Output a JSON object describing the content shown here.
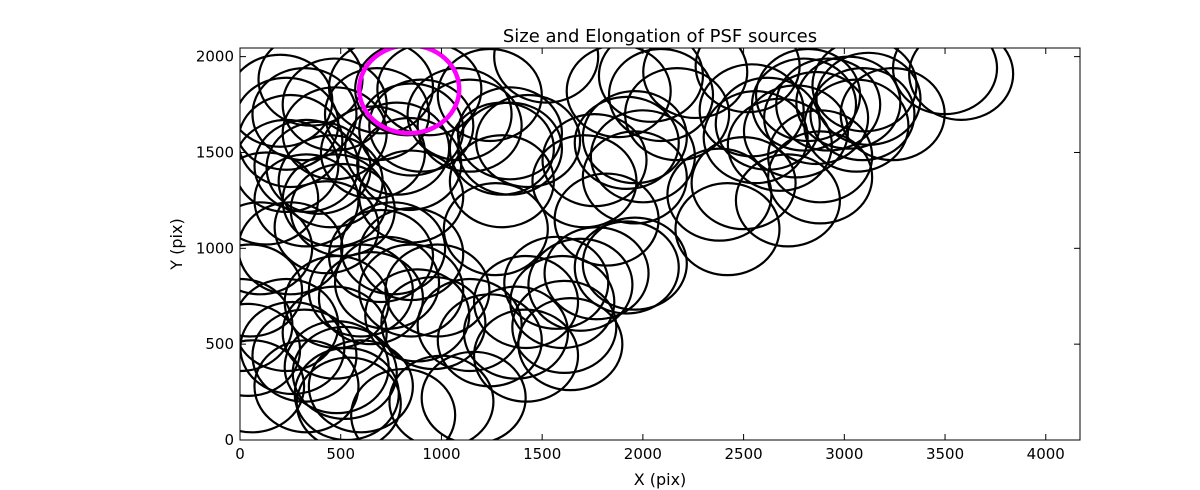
{
  "chart_data": {
    "type": "scatter",
    "title": "Size and Elongation of PSF sources",
    "xlabel": "X (pix)",
    "ylabel": "Y (pix)",
    "xlim": [
      0,
      4170
    ],
    "ylim": [
      0,
      2045
    ],
    "xticks": [
      0,
      500,
      1000,
      1500,
      2000,
      2500,
      3000,
      3500,
      4000
    ],
    "yticks": [
      0,
      500,
      1000,
      1500,
      2000
    ],
    "xtick_labels": [
      "0",
      "500",
      "1000",
      "1500",
      "2000",
      "2500",
      "3000",
      "3500",
      "4000"
    ],
    "ytick_labels": [
      "0",
      "500",
      "1000",
      "1500",
      "2000"
    ],
    "grid": false,
    "marker": "ellipse",
    "sources": [
      [
        2,
        600
      ],
      [
        40,
        470
      ],
      [
        60,
        280
      ],
      [
        50,
        780
      ],
      [
        100,
        1000
      ],
      [
        130,
        1260
      ],
      [
        200,
        1770
      ],
      [
        230,
        1650
      ],
      [
        250,
        1560
      ],
      [
        230,
        1430
      ],
      [
        250,
        1000
      ],
      [
        230,
        600
      ],
      [
        260,
        480
      ],
      [
        320,
        440
      ],
      [
        330,
        280
      ],
      [
        330,
        1430
      ],
      [
        320,
        1700
      ],
      [
        350,
        1880
      ],
      [
        330,
        1250
      ],
      [
        390,
        1420
      ],
      [
        430,
        1110
      ],
      [
        450,
        1350
      ],
      [
        470,
        1600
      ],
      [
        470,
        1750
      ],
      [
        470,
        1250
      ],
      [
        510,
        1200
      ],
      [
        480,
        720
      ],
      [
        470,
        560
      ],
      [
        480,
        380
      ],
      [
        520,
        350
      ],
      [
        530,
        240
      ],
      [
        540,
        190
      ],
      [
        600,
        280
      ],
      [
        600,
        780
      ],
      [
        650,
        740
      ],
      [
        660,
        1500
      ],
      [
        680,
        1700
      ],
      [
        700,
        1840
      ],
      [
        700,
        960
      ],
      [
        730,
        820
      ],
      [
        760,
        1000
      ],
      [
        780,
        1520
      ],
      [
        810,
        130
      ],
      [
        830,
        1830
      ],
      [
        850,
        1620
      ],
      [
        840,
        1440
      ],
      [
        850,
        1270
      ],
      [
        850,
        970
      ],
      [
        850,
        780
      ],
      [
        880,
        650
      ],
      [
        960,
        610
      ],
      [
        980,
        780
      ],
      [
        900,
        1640
      ],
      [
        940,
        1830
      ],
      [
        1000,
        200
      ],
      [
        1090,
        1700
      ],
      [
        1140,
        1640
      ],
      [
        1140,
        600
      ],
      [
        1160,
        220
      ],
      [
        1240,
        520
      ],
      [
        1240,
        1800
      ],
      [
        1270,
        1100
      ],
      [
        1300,
        1350
      ],
      [
        1300,
        1520
      ],
      [
        1340,
        1600
      ],
      [
        1340,
        1520
      ],
      [
        1370,
        560
      ],
      [
        1420,
        720
      ],
      [
        1420,
        440
      ],
      [
        1430,
        1560
      ],
      [
        1520,
        2000
      ],
      [
        1570,
        820
      ],
      [
        1600,
        720
      ],
      [
        1610,
        590
      ],
      [
        1640,
        500
      ],
      [
        1690,
        810
      ],
      [
        1710,
        1350
      ],
      [
        1760,
        1460
      ],
      [
        1770,
        870
      ],
      [
        1820,
        1150
      ],
      [
        1880,
        1820
      ],
      [
        1920,
        1550
      ],
      [
        1920,
        900
      ],
      [
        1960,
        920
      ],
      [
        1960,
        1580
      ],
      [
        1960,
        1370
      ],
      [
        2000,
        1480
      ],
      [
        2040,
        1900
      ],
      [
        2090,
        1800
      ],
      [
        2170,
        1700
      ],
      [
        2260,
        1920
      ],
      [
        2380,
        1280
      ],
      [
        2420,
        1100
      ],
      [
        2500,
        1340
      ],
      [
        2520,
        1950
      ],
      [
        2540,
        1720
      ],
      [
        2560,
        1580
      ],
      [
        2620,
        1650
      ],
      [
        2680,
        1540
      ],
      [
        2720,
        1250
      ],
      [
        2760,
        1610
      ],
      [
        2800,
        1750
      ],
      [
        2820,
        1800
      ],
      [
        2860,
        1680
      ],
      [
        2880,
        1480
      ],
      [
        2880,
        1370
      ],
      [
        2920,
        1750
      ],
      [
        3020,
        1760
      ],
      [
        3060,
        1640
      ],
      [
        3090,
        1700
      ],
      [
        3100,
        1850
      ],
      [
        3120,
        1780
      ],
      [
        3240,
        1700
      ],
      [
        3500,
        1940
      ],
      [
        3580,
        1910
      ]
    ],
    "highlight": {
      "x": 840,
      "y": 1830,
      "color": "#ff00ff"
    },
    "colors": {
      "outline": "#000000",
      "highlight": "#ff00ff"
    }
  }
}
